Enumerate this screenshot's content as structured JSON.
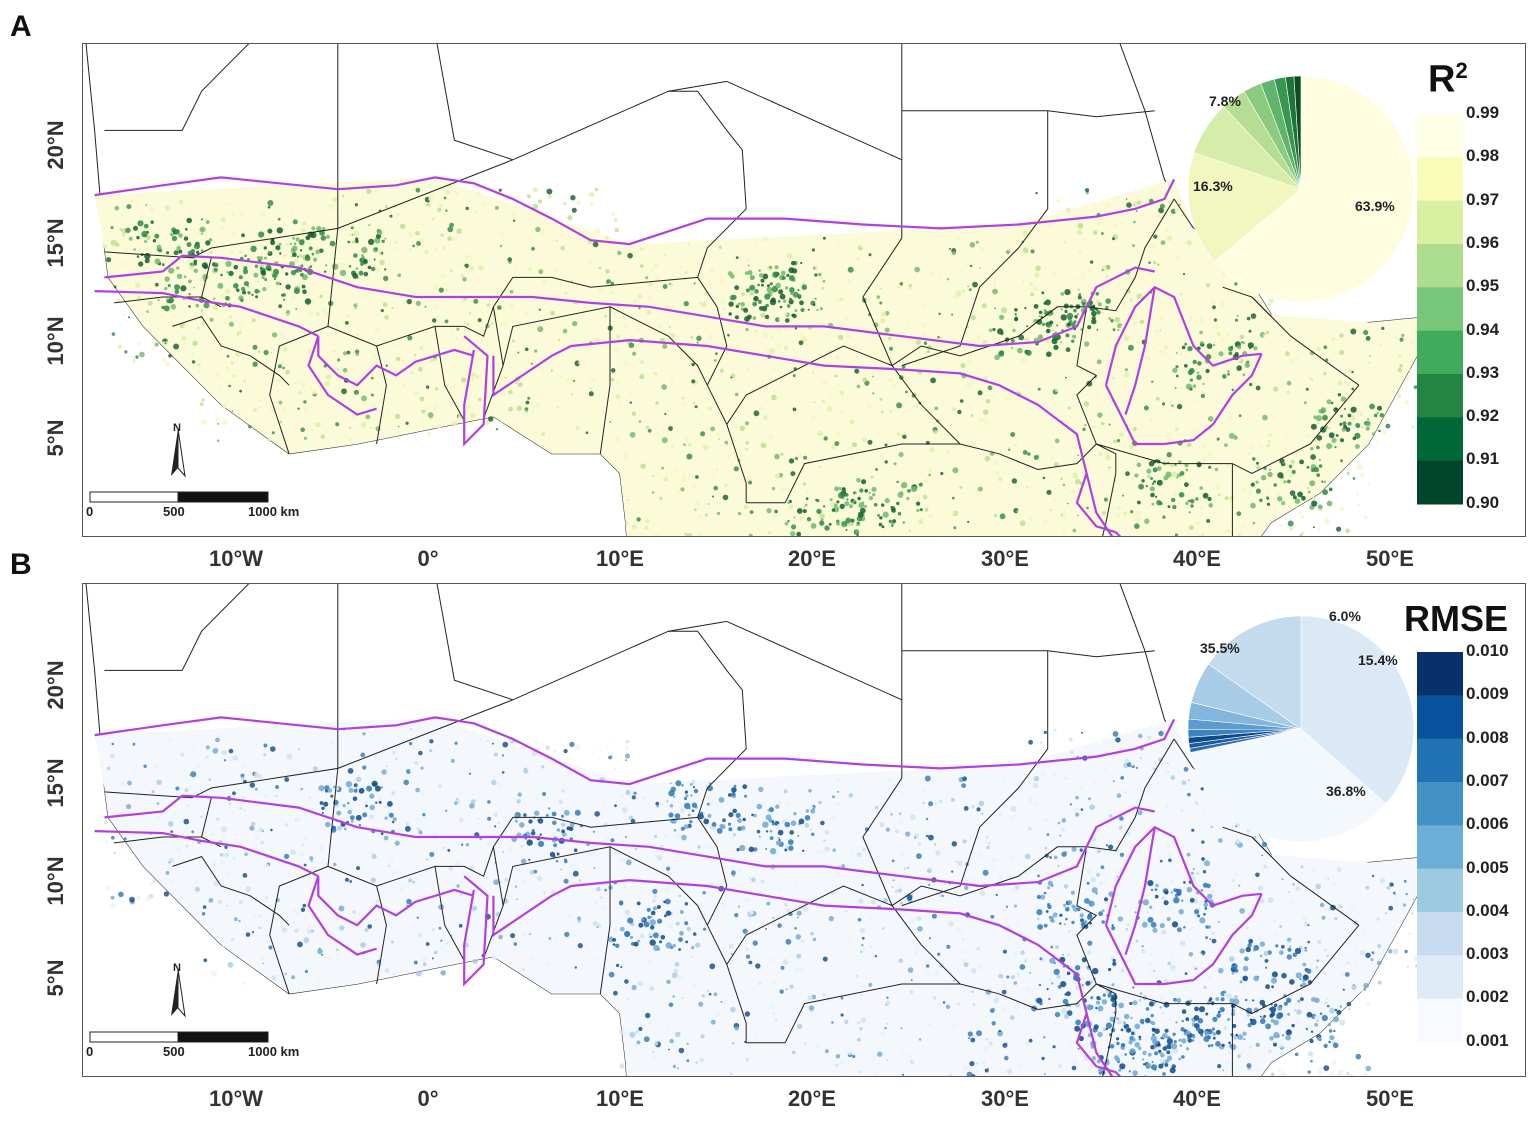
{
  "panels": [
    {
      "letter": "A",
      "legend_title": "R",
      "legend_sup": "2",
      "colorbar_labels": [
        "0.99",
        "0.98",
        "0.97",
        "0.96",
        "0.95",
        "0.94",
        "0.93",
        "0.92",
        "0.91",
        "0.90"
      ],
      "colorbar_colors": [
        "#ffffe5",
        "#f7fcb9",
        "#d9f0a3",
        "#addd8e",
        "#78c679",
        "#41ab5d",
        "#238443",
        "#006837",
        "#004529"
      ],
      "pie": {
        "slices": [
          {
            "label": "63.9%",
            "value": 63.9,
            "color": "#fffde0"
          },
          {
            "label": "16.3%",
            "value": 16.3,
            "color": "#f2f7c0"
          },
          {
            "label": "7.8%",
            "value": 7.8,
            "color": "#d6ecaa"
          },
          {
            "label": "",
            "value": 3.6,
            "color": "#b5dd93"
          },
          {
            "label": "",
            "value": 2.6,
            "color": "#8ccb7f"
          },
          {
            "label": "",
            "value": 2.0,
            "color": "#61b46b"
          },
          {
            "label": "",
            "value": 1.6,
            "color": "#3a9550"
          },
          {
            "label": "",
            "value": 1.2,
            "color": "#1d7338"
          },
          {
            "label": "",
            "value": 1.0,
            "color": "#0b4d25"
          }
        ]
      },
      "speckle_colors": [
        "#f2f8c4",
        "#dff0a6",
        "#b9df8f",
        "#6fb86a",
        "#2e8a45",
        "#125e2e"
      ]
    },
    {
      "letter": "B",
      "legend_title": "RMSE",
      "legend_sup": "",
      "colorbar_labels": [
        "0.010",
        "0.009",
        "0.008",
        "0.007",
        "0.006",
        "0.005",
        "0.004",
        "0.003",
        "0.002",
        "0.001"
      ],
      "colorbar_colors": [
        "#08306b",
        "#08519c",
        "#2171b5",
        "#4292c6",
        "#6baed6",
        "#9ecae1",
        "#c6dbef",
        "#deebf7",
        "#f7fbff"
      ],
      "pie": {
        "slices": [
          {
            "label": "36.8%",
            "value": 36.8,
            "color": "#dbe8f5"
          },
          {
            "label": "35.5%",
            "value": 35.5,
            "color": "#f3f8fd"
          },
          {
            "label": "",
            "value": 0.6,
            "color": "#2c6fb0"
          },
          {
            "label": "",
            "value": 0.7,
            "color": "#1c5c9f"
          },
          {
            "label": "",
            "value": 0.9,
            "color": "#0b4a8c"
          },
          {
            "label": "",
            "value": 1.1,
            "color": "#3b83c0"
          },
          {
            "label": "",
            "value": 1.5,
            "color": "#5a9cd0"
          },
          {
            "label": "",
            "value": 2.4,
            "color": "#83b6dc"
          },
          {
            "label": "6.0%",
            "value": 6.0,
            "color": "#a9cce6"
          },
          {
            "label": "15.4%",
            "value": 15.4,
            "color": "#c4dbee"
          }
        ]
      },
      "speckle_colors": [
        "#e9f2fa",
        "#cfe1f2",
        "#a9cbe6",
        "#6fa8d4",
        "#2f78b8",
        "#0c4a8a"
      ]
    }
  ],
  "map": {
    "x_ticks": [
      "10°W",
      "0°",
      "10°E",
      "20°E",
      "30°E",
      "40°E",
      "50°E"
    ],
    "y_ticks": [
      "20°N",
      "15°N",
      "10°N",
      "5°N"
    ],
    "scale_bar": [
      "0",
      "500",
      "1000 km"
    ],
    "north_arrow": "N",
    "boundary_color": "#b23fe0",
    "border_color": "#222222"
  }
}
